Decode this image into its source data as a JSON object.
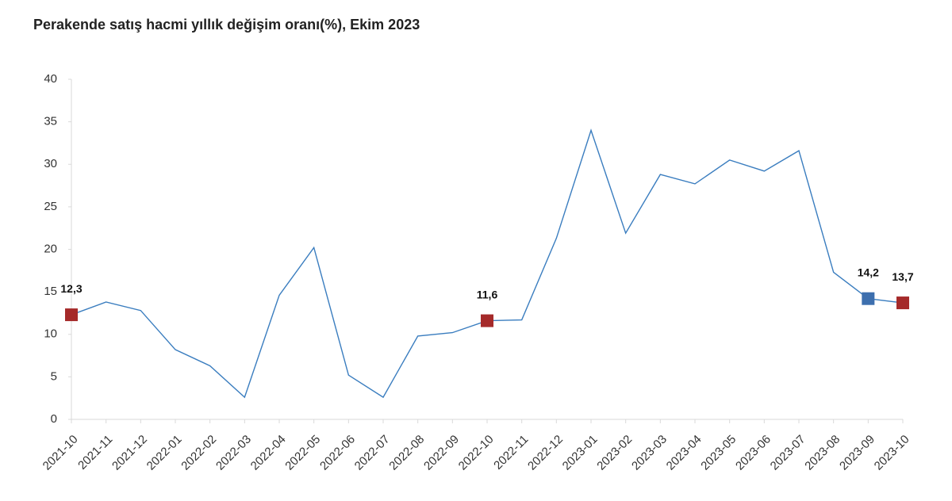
{
  "chart_data": {
    "type": "line",
    "title": "Perakende satış hacmi yıllık değişim oranı(%), Ekim 2023",
    "categories": [
      "2021-10",
      "2021-11",
      "2021-12",
      "2022-01",
      "2022-02",
      "2022-03",
      "2022-04",
      "2022-05",
      "2022-06",
      "2022-07",
      "2022-08",
      "2022-09",
      "2022-10",
      "2022-11",
      "2022-12",
      "2023-01",
      "2023-02",
      "2023-03",
      "2023-04",
      "2023-05",
      "2023-06",
      "2023-07",
      "2023-08",
      "2023-09",
      "2023-10"
    ],
    "series": [
      {
        "color": "#3a7dbf",
        "values": [
          12.3,
          13.8,
          12.8,
          8.2,
          6.3,
          2.6,
          14.6,
          20.2,
          5.2,
          2.6,
          9.8,
          10.2,
          11.6,
          11.7,
          21.3,
          34.0,
          21.9,
          28.8,
          27.7,
          30.5,
          29.2,
          31.6,
          17.3,
          14.2,
          13.7
        ],
        "value_labels": [
          "12,3",
          null,
          null,
          null,
          null,
          null,
          null,
          null,
          null,
          null,
          null,
          null,
          "11,6",
          null,
          null,
          null,
          null,
          null,
          null,
          null,
          null,
          null,
          null,
          "14,2",
          "13,7"
        ],
        "marker_colors": [
          "#a52a2a",
          null,
          null,
          null,
          null,
          null,
          null,
          null,
          null,
          null,
          null,
          null,
          "#a52a2a",
          null,
          null,
          null,
          null,
          null,
          null,
          null,
          null,
          null,
          null,
          "#3d6fae",
          "#a52a2a"
        ]
      }
    ],
    "ylim": [
      0,
      40
    ],
    "yticks": [
      0,
      5,
      10,
      15,
      20,
      25,
      30,
      35,
      40
    ],
    "grid": false
  }
}
